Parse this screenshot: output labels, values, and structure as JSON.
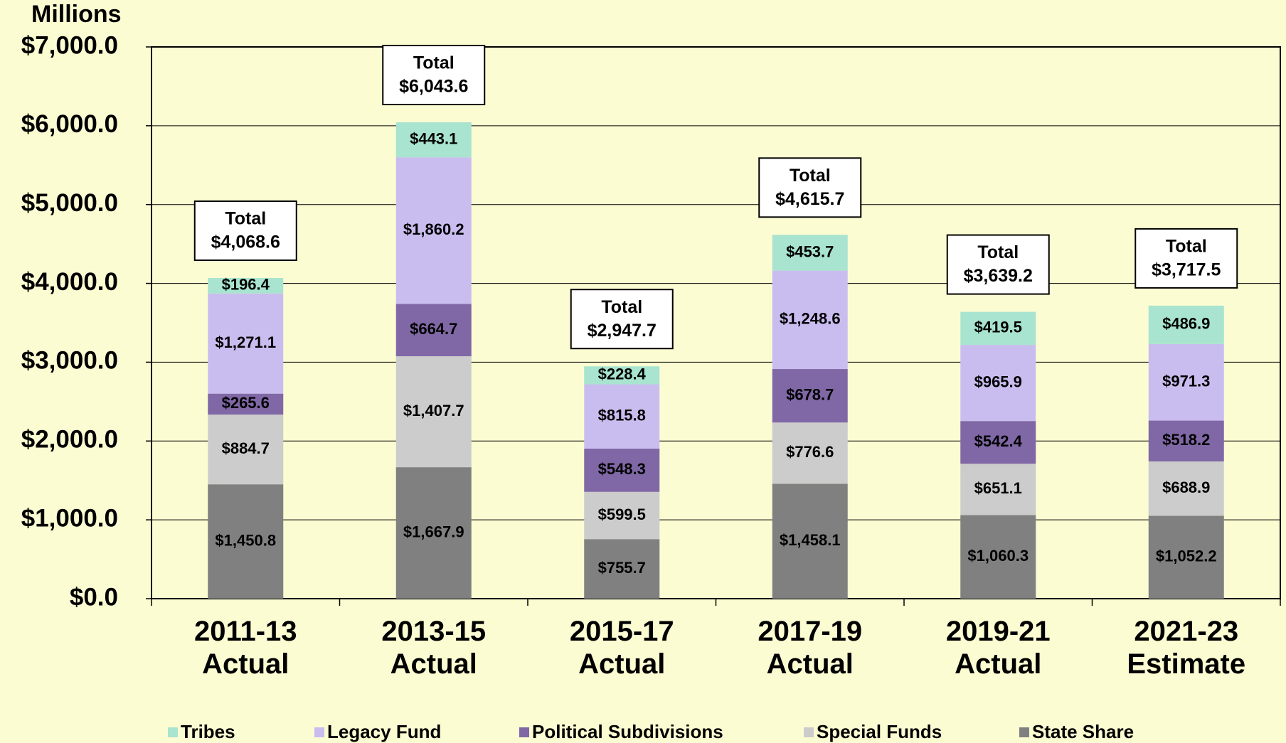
{
  "chart_data": {
    "type": "stacked_bar",
    "y_label": "Millions",
    "categories": [
      "2011-13 Actual",
      "2013-15 Actual",
      "2015-17 Actual",
      "2017-19 Actual",
      "2019-21 Actual",
      "2021-23 Estimate"
    ],
    "series": [
      {
        "name": "Tribes",
        "color": "#a8e4cf",
        "values": [
          196.4,
          443.1,
          228.4,
          453.7,
          419.5,
          486.9
        ],
        "value_labels": [
          "$196.4",
          "$443.1",
          "$228.4",
          "$453.7",
          "$419.5",
          "$486.9"
        ]
      },
      {
        "name": "Legacy Fund",
        "color": "#c9bdf0",
        "values": [
          1271.1,
          1860.2,
          815.8,
          1248.6,
          965.9,
          971.3
        ],
        "value_labels": [
          "$1,271.1",
          "$1,860.2",
          "$815.8",
          "$1,248.6",
          "$965.9",
          "$971.3"
        ]
      },
      {
        "name": "Political Subdivisions",
        "color": "#8068a6",
        "values": [
          265.6,
          664.7,
          548.3,
          678.7,
          542.4,
          518.2
        ],
        "value_labels": [
          "$265.6",
          "$664.7",
          "$548.3",
          "$678.7",
          "$542.4",
          "$518.2"
        ]
      },
      {
        "name": "Special Funds",
        "color": "#cccccc",
        "values": [
          884.7,
          1407.7,
          599.5,
          776.6,
          651.1,
          688.9
        ],
        "value_labels": [
          "$884.7",
          "$1,407.7",
          "$599.5",
          "$776.6",
          "$651.1",
          "$688.9"
        ]
      },
      {
        "name": "State Share",
        "color": "#808080",
        "values": [
          1450.8,
          1667.9,
          755.7,
          1458.1,
          1060.3,
          1052.2
        ],
        "value_labels": [
          "$1,450.8",
          "$1,667.9",
          "$755.7",
          "$1,458.1",
          "$1,060.3",
          "$1,052.2"
        ]
      }
    ],
    "total_label": "Total",
    "totals": [
      4068.6,
      6043.6,
      2947.7,
      4615.7,
      3639.2,
      3717.5
    ],
    "total_value_labels": [
      "$4,068.6",
      "$6,043.6",
      "$2,947.7",
      "$4,615.7",
      "$3,639.2",
      "$3,717.5"
    ],
    "ylim": [
      0,
      7000
    ],
    "yticks": [
      {
        "value": 0,
        "label": "$0.0"
      },
      {
        "value": 1000,
        "label": "$1,000.0"
      },
      {
        "value": 2000,
        "label": "$2,000.0"
      },
      {
        "value": 3000,
        "label": "$3,000.0"
      },
      {
        "value": 4000,
        "label": "$4,000.0"
      },
      {
        "value": 5000,
        "label": "$5,000.0"
      },
      {
        "value": 6000,
        "label": "$6,000.0"
      },
      {
        "value": 7000,
        "label": "$7,000.0"
      }
    ],
    "grid": true,
    "legend": "bottom"
  }
}
